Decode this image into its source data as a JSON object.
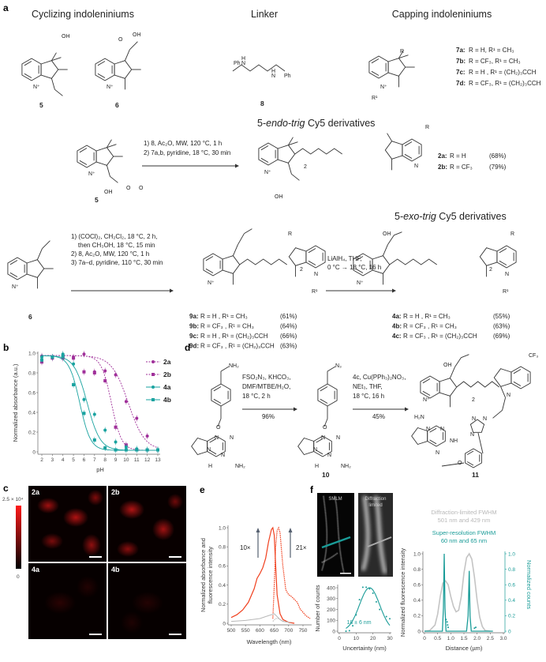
{
  "panel_labels": {
    "a": "a",
    "b": "b",
    "c": "c",
    "d": "d",
    "e": "e",
    "f": "f"
  },
  "a": {
    "headers": [
      "Cyclizing indoleniniums",
      "Linker",
      "Capping indoleniniums"
    ],
    "compounds": {
      "c5": "5",
      "c6": "6",
      "c8": "8",
      "c5b": "5",
      "c6b": "6"
    },
    "caps": [
      {
        "id": "7a:",
        "text": "R = H, R¹ = CH₃"
      },
      {
        "id": "7b:",
        "text": "R = CF₃, R¹ = CH₃"
      },
      {
        "id": "7c:",
        "text": "R = H , R¹ = (CH₂)₃CCH"
      },
      {
        "id": "7d:",
        "text": "R = CF₃, R¹ = (CH₂)₃CCH"
      }
    ],
    "endo_title": {
      "prefix": "5-",
      "italic": "endo-trig",
      "suffix": " Cy5 derivatives"
    },
    "exo_title": {
      "prefix": "5-",
      "italic": "exo-trig",
      "suffix": " Cy5 derivatives"
    },
    "endo_conditions": [
      "1) 8, Ac₂O, MW, 120 °C, 1 h",
      "2) 7a,b, pyridine, 18 °C, 30 min"
    ],
    "endo_products": [
      {
        "id": "2a:",
        "text": "R = H",
        "yield": "(68%)"
      },
      {
        "id": "2b:",
        "text": "R = CF₃",
        "yield": "(79%)"
      }
    ],
    "exo_conditions": [
      "1) (COCl)₂, CH₂Cl₂, 18 °C, 2 h,",
      "    then CH₃OH, 18 °C, 15 min",
      "2) 8, Ac₂O, MW, 120 °C, 1 h",
      "3) 7a–d, pyridine, 110 °C, 30 min"
    ],
    "ester_products": [
      {
        "id": "9a:",
        "text": "R = H , R¹ = CH₃",
        "yield": "(61%)"
      },
      {
        "id": "9b:",
        "text": "R = CF₃ , R¹ = CH₃",
        "yield": "(64%)"
      },
      {
        "id": "9c:",
        "text": "R = H , R¹ = (CH₂)₃CCH",
        "yield": "(66%)"
      },
      {
        "id": "9d:",
        "text": "R = CF₃ , R¹ = (CH₂)₃CCH",
        "yield": "(63%)"
      }
    ],
    "reduction_conditions": [
      "LiAlH₄, THF,",
      "0 °C → 18 °C, 16 h"
    ],
    "alcohol_products": [
      {
        "id": "4a:",
        "text": "R = H , R¹ = CH₃",
        "yield": "(55%)"
      },
      {
        "id": "4b:",
        "text": "R = CF₃ , R¹ = CH₃",
        "yield": "(63%)"
      },
      {
        "id": "4c:",
        "text": "R = CF₃ , R¹ = (CH₂)₃CCH",
        "yield": "(69%)"
      }
    ],
    "atoms": [
      "N⁺",
      "OH",
      "N⁺",
      "O",
      "OH",
      "Ph",
      "N",
      "H",
      "N",
      "Ph",
      "H",
      "R",
      "N⁺",
      "R¹",
      "N⁺",
      "OH",
      "R",
      "N⁺",
      "N",
      "2",
      "OH",
      "N⁺",
      "O",
      "O",
      "R",
      "N⁺",
      "N",
      "R¹",
      "2",
      "OH",
      "R",
      "N⁺",
      "N",
      "R¹",
      "2"
    ]
  },
  "d": {
    "compounds": {
      "c10": "10",
      "c11": "11"
    },
    "step1": [
      "FSO₂N₃, KHCO₃,",
      "DMF/MTBE/H₂O,",
      "18 °C, 2 h"
    ],
    "step1_yield": "96%",
    "step2": [
      "4c, Cu(PPh₃)₂NO₃,",
      "NEt₃, THF,",
      "18 °C, 16 h"
    ],
    "step2_yield": "45%",
    "atoms": [
      "NH₂",
      "O",
      "N",
      "N",
      "N",
      "N",
      "H",
      "NH₂",
      "N₃",
      "O",
      "N",
      "N",
      "N",
      "N",
      "H",
      "NH₂",
      "OH",
      "CF₃",
      "N⁺",
      "N",
      "2",
      "H₂N",
      "N",
      "N",
      "NH",
      "N",
      "O",
      "N",
      "N",
      "N"
    ]
  },
  "c": {
    "colorbar_max": "2.5 × 10⁴",
    "colorbar_min": "0",
    "colormap": [
      "#000000",
      "#ff1a1a"
    ],
    "images": [
      "2a",
      "2b",
      "4a",
      "4b"
    ]
  },
  "chart_data": [
    {
      "panel": "b",
      "type": "scatter",
      "xlabel": "pH",
      "ylabel": "Normalized absorbance (a.u.)",
      "xlim": [
        2,
        13
      ],
      "ylim": [
        0,
        1.0
      ],
      "xticks": [
        "2",
        "3",
        "4",
        "5",
        "6",
        "7",
        "8",
        "9",
        "10",
        "11",
        "12",
        "13"
      ],
      "yticks": [
        "0",
        "0.2",
        "0.4",
        "0.6",
        "0.8",
        "1.0"
      ],
      "legend_position": "right",
      "x": [
        2,
        3,
        4,
        5,
        6,
        7,
        8,
        9,
        10,
        11,
        12,
        13
      ],
      "series": [
        {
          "name": "2a",
          "color": "#a0309a",
          "marker": "circle",
          "fit": "dashed",
          "values": [
            0.97,
            0.96,
            0.95,
            0.96,
            0.99,
            0.81,
            0.82,
            0.78,
            0.51,
            0.34,
            0.16,
            0.02
          ]
        },
        {
          "name": "2b",
          "color": "#a0309a",
          "marker": "square",
          "fit": "dashed",
          "values": [
            0.91,
            0.95,
            0.95,
            0.95,
            0.81,
            0.8,
            0.72,
            0.25,
            0.07,
            0.02,
            0.02,
            0.02
          ]
        },
        {
          "name": "4a",
          "color": "#1aa3a0",
          "marker": "circle",
          "fit": "solid",
          "values": [
            0.96,
            0.96,
            0.99,
            0.89,
            0.53,
            0.38,
            0.22,
            0.1,
            0.05,
            0.03,
            0.02,
            0.02
          ]
        },
        {
          "name": "4b",
          "color": "#1aa3a0",
          "marker": "square",
          "fit": "solid",
          "values": [
            0.93,
            0.96,
            0.97,
            0.68,
            0.39,
            0.12,
            0.04,
            0.02,
            0.02,
            0.02,
            0.02,
            0.02
          ]
        }
      ]
    },
    {
      "panel": "e",
      "type": "line",
      "xlabel": "Wavelength (nm)",
      "ylabel": "Normalized absorbance and fluorescence intensity",
      "xlim": [
        500,
        775
      ],
      "ylim": [
        0,
        1.0
      ],
      "xticks": [
        "500",
        "550",
        "600",
        "650",
        "700",
        "750"
      ],
      "yticks": [
        "0",
        "0.2",
        "0.4",
        "0.6",
        "0.8",
        "1.0"
      ],
      "annotations": [
        "10×",
        "21×"
      ],
      "series": [
        {
          "style": "solid",
          "color": "#f0401e",
          "x": [
            500,
            520,
            540,
            560,
            580,
            590,
            600,
            610,
            620,
            630,
            640,
            645,
            650,
            655,
            660,
            670,
            680,
            700,
            720
          ],
          "values": [
            0.06,
            0.09,
            0.14,
            0.22,
            0.36,
            0.47,
            0.52,
            0.58,
            0.68,
            0.85,
            0.98,
            1.0,
            0.92,
            0.6,
            0.3,
            0.1,
            0.04,
            0.01,
            0
          ]
        },
        {
          "style": "dotted",
          "color": "#f0401e",
          "x": [
            645,
            650,
            655,
            660,
            665,
            670,
            680,
            690,
            700,
            710,
            720,
            730,
            740,
            760,
            775
          ],
          "values": [
            0.05,
            0.4,
            0.8,
            0.97,
            1.0,
            0.95,
            0.6,
            0.35,
            0.3,
            0.28,
            0.25,
            0.22,
            0.15,
            0.08,
            0.05
          ]
        },
        {
          "style": "solid",
          "color": "#b8b8b8",
          "x": [
            500,
            550,
            600,
            620,
            640,
            650,
            660,
            670,
            680,
            700
          ],
          "values": [
            0.02,
            0.03,
            0.05,
            0.07,
            0.09,
            0.1,
            0.07,
            0.04,
            0.02,
            0.01
          ]
        },
        {
          "style": "dotted",
          "color": "#b8b8b8",
          "x": [
            645,
            655,
            665,
            675,
            690,
            710
          ],
          "values": [
            0.02,
            0.05,
            0.05,
            0.03,
            0.015,
            0.01
          ]
        }
      ]
    },
    {
      "panel": "f-histogram",
      "type": "scatter",
      "xlabel": "Uncertainty (nm)",
      "ylabel": "Number of counts",
      "xlim": [
        0,
        30
      ],
      "ylim": [
        0,
        450
      ],
      "xticks": [
        "0",
        "10",
        "20",
        "30"
      ],
      "yticks": [
        "0",
        "100",
        "200",
        "300",
        "400"
      ],
      "annotation": "18 ± 6 nm",
      "color": "#1a9c98",
      "x": [
        4,
        6,
        8,
        10,
        12,
        14,
        16,
        18,
        20,
        22,
        24,
        28,
        30
      ],
      "values": [
        0,
        5,
        50,
        150,
        290,
        405,
        405,
        390,
        350,
        270,
        200,
        135,
        115
      ],
      "fit": {
        "mean": 18,
        "sd": 6,
        "amplitude": 400
      }
    },
    {
      "panel": "f-profile",
      "type": "line",
      "xlabel": "Distance (µm)",
      "ylabel": "Normalized fluorescence intensity",
      "y2label": "Normalized counts",
      "xlim": [
        0,
        3.0
      ],
      "ylim": [
        0,
        1.0
      ],
      "xticks": [
        "0",
        "0.5",
        "1.0",
        "1.5",
        "2.0",
        "2.5",
        "3.0"
      ],
      "yticks": [
        "0",
        "0.2",
        "0.4",
        "0.6",
        "0.8",
        "1.0"
      ],
      "annotations": [
        {
          "text": [
            "Diffraction-limited FWHM",
            "501 nm and 429 nm"
          ],
          "color": "#b8b8b8"
        },
        {
          "text": [
            "Super-resolution FWHM",
            "60 nm and 65 nm"
          ],
          "color": "#1a9c98"
        }
      ],
      "series": [
        {
          "color": "#c4c4c4",
          "x": [
            0,
            0.2,
            0.4,
            0.5,
            0.6,
            0.7,
            0.8,
            0.9,
            1.0,
            1.1,
            1.2,
            1.3,
            1.4,
            1.5,
            1.6,
            1.7,
            1.8,
            1.9,
            2.0,
            2.1,
            2.2,
            2.3,
            2.5
          ],
          "values": [
            0,
            0.01,
            0.08,
            0.22,
            0.45,
            0.62,
            0.65,
            0.6,
            0.45,
            0.32,
            0.25,
            0.27,
            0.45,
            0.75,
            0.95,
            1.0,
            0.93,
            0.7,
            0.4,
            0.18,
            0.06,
            0.01,
            0
          ]
        },
        {
          "color": "#1a9c98",
          "x": [
            0,
            0.68,
            0.72,
            0.75,
            0.78,
            0.82,
            1.6,
            1.66,
            1.7,
            1.73,
            1.78,
            2.6
          ],
          "values": [
            0,
            0,
            0.3,
            1.0,
            0.3,
            0,
            0,
            0.2,
            0.78,
            0.2,
            0,
            0
          ]
        }
      ]
    }
  ],
  "f": {
    "smlm_label": "SMLM",
    "diff_label": [
      "Diffraction",
      "limited"
    ]
  }
}
